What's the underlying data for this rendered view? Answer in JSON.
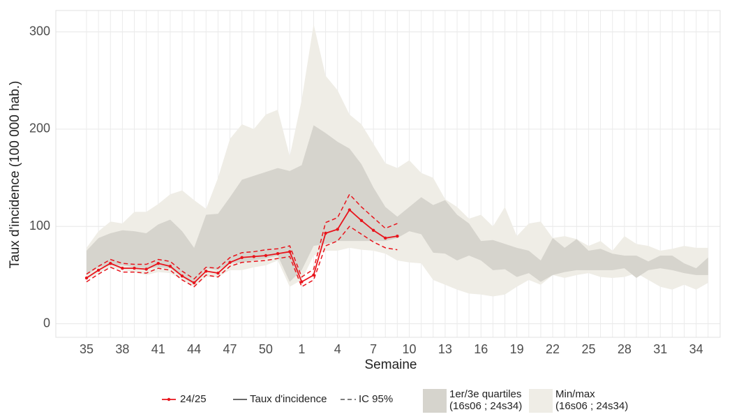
{
  "chart_data": {
    "type": "line",
    "x_label": "Semaine",
    "y_label": "Taux d'incidence (100 000 hab.)",
    "categories": [
      "35",
      null,
      null,
      "38",
      null,
      null,
      "41",
      null,
      null,
      "44",
      null,
      null,
      "47",
      null,
      null,
      "50",
      null,
      null,
      "1",
      null,
      null,
      "4",
      null,
      null,
      "7",
      null,
      null,
      "10",
      null,
      null,
      "13",
      null,
      null,
      "16",
      null,
      null,
      "19",
      null,
      null,
      "22",
      null,
      null,
      "25",
      null,
      null,
      "28",
      null,
      null,
      "31",
      null,
      null,
      "34",
      null
    ],
    "ylim": [
      -14,
      322
    ],
    "yticks": [
      0,
      100,
      200,
      300
    ],
    "grid": true,
    "series": [
      {
        "name": "24/25",
        "color": "#e8141c",
        "values": [
          47,
          55,
          62,
          57,
          57,
          56,
          62,
          59,
          49,
          42,
          54,
          52,
          63,
          68,
          69,
          70,
          72,
          74,
          43,
          50,
          93,
          97,
          117,
          106,
          96,
          88,
          90,
          null,
          null,
          null,
          null,
          null,
          null,
          null,
          null,
          null,
          null,
          null,
          null,
          null,
          null,
          null,
          null,
          null,
          null,
          null,
          null,
          null,
          null,
          null,
          null,
          null,
          null
        ]
      }
    ],
    "line_label": "Taux d'incidence",
    "ci": {
      "name": "IC 95%",
      "color": "#e8141c",
      "lower": [
        43,
        51,
        58,
        53,
        53,
        52,
        57,
        55,
        45,
        38,
        50,
        48,
        59,
        63,
        64,
        65,
        67,
        69,
        38,
        45,
        80,
        85,
        100,
        92,
        84,
        78,
        76,
        null,
        null,
        null,
        null,
        null,
        null,
        null,
        null,
        null,
        null,
        null,
        null,
        null,
        null,
        null,
        null,
        null,
        null,
        null,
        null,
        null,
        null,
        null,
        null,
        null,
        null
      ],
      "upper": [
        51,
        59,
        66,
        62,
        61,
        61,
        66,
        64,
        54,
        46,
        58,
        57,
        68,
        73,
        74,
        76,
        77,
        80,
        48,
        56,
        104,
        109,
        133,
        120,
        109,
        98,
        103,
        null,
        null,
        null,
        null,
        null,
        null,
        null,
        null,
        null,
        null,
        null,
        null,
        null,
        null,
        null,
        null,
        null,
        null,
        null,
        null,
        null,
        null,
        null,
        null,
        null,
        null
      ]
    },
    "bands": [
      {
        "name": [
          "Min/max",
          "(16s06 ; 24s34)"
        ],
        "color": "#efede6",
        "lower": [
          45,
          52,
          58,
          55,
          53,
          50,
          53,
          52,
          45,
          38,
          48,
          48,
          55,
          55,
          58,
          60,
          65,
          38,
          45,
          70,
          75,
          75,
          78,
          76,
          75,
          72,
          65,
          63,
          62,
          45,
          40,
          35,
          31,
          30,
          28,
          30,
          38,
          45,
          40,
          50,
          47,
          50,
          52,
          48,
          47,
          48,
          52,
          45,
          38,
          35,
          40,
          35,
          42
        ],
        "upper": [
          78,
          95,
          105,
          103,
          115,
          115,
          123,
          133,
          137,
          127,
          118,
          150,
          190,
          205,
          200,
          215,
          220,
          172,
          230,
          308,
          255,
          240,
          215,
          205,
          185,
          165,
          160,
          168,
          155,
          150,
          128,
          120,
          108,
          112,
          100,
          120,
          90,
          103,
          105,
          88,
          90,
          87,
          80,
          85,
          75,
          90,
          82,
          80,
          75,
          77,
          80,
          78,
          78
        ]
      },
      {
        "name": [
          "1er/3e quartiles",
          "(16s06 ; 24s34)"
        ],
        "color": "#d6d4cd",
        "lower": [
          50,
          58,
          60,
          60,
          58,
          57,
          58,
          57,
          48,
          40,
          57,
          55,
          62,
          63,
          65,
          67,
          70,
          43,
          55,
          80,
          82,
          85,
          85,
          85,
          85,
          85,
          88,
          95,
          92,
          73,
          72,
          65,
          70,
          65,
          55,
          56,
          48,
          52,
          43,
          50,
          53,
          55,
          55,
          55,
          55,
          57,
          47,
          55,
          57,
          55,
          52,
          50,
          50
        ],
        "upper": [
          75,
          88,
          93,
          96,
          95,
          93,
          102,
          107,
          95,
          78,
          112,
          113,
          130,
          148,
          152,
          156,
          160,
          157,
          163,
          204,
          196,
          187,
          180,
          164,
          140,
          120,
          110,
          120,
          130,
          122,
          127,
          112,
          103,
          85,
          86,
          82,
          78,
          75,
          65,
          88,
          78,
          87,
          75,
          77,
          72,
          70,
          70,
          64,
          70,
          70,
          62,
          57,
          68
        ]
      }
    ]
  }
}
